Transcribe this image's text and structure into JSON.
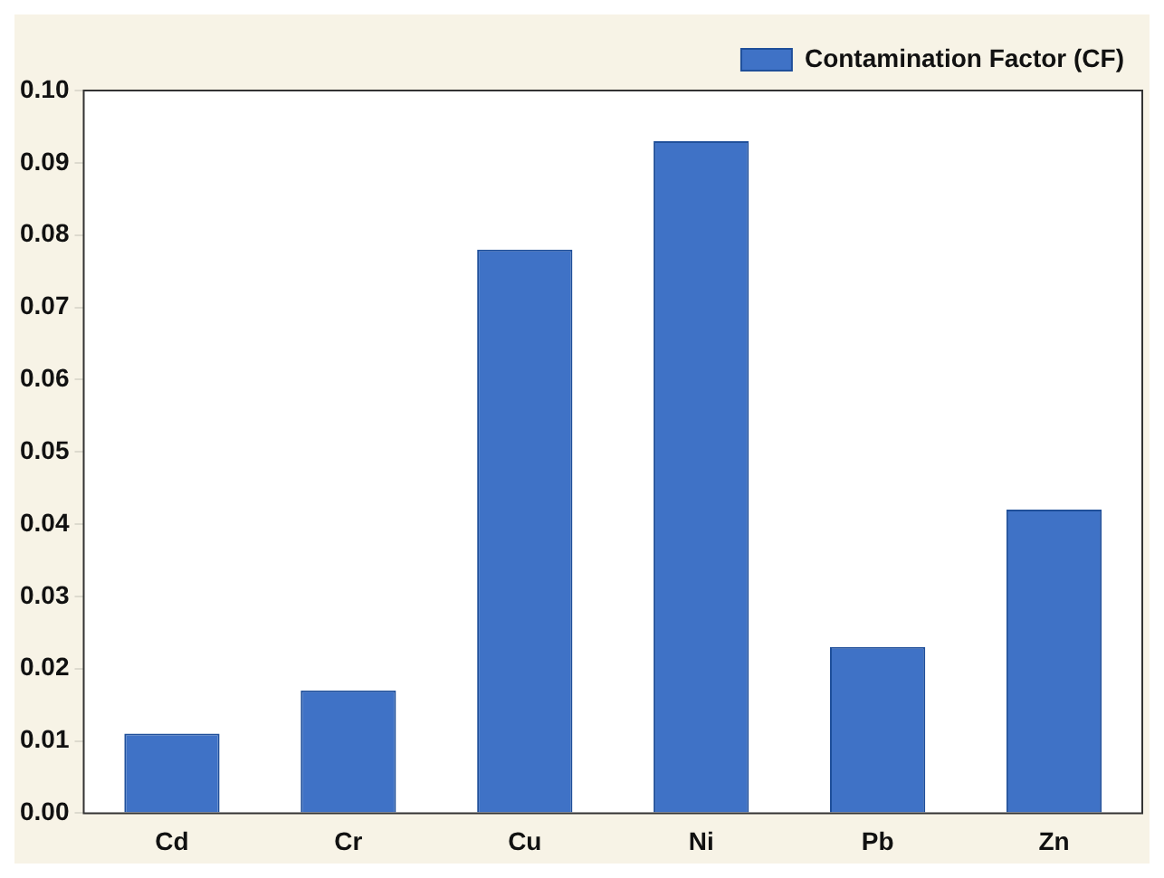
{
  "chart_data": {
    "type": "bar",
    "categories": [
      "Cd",
      "Cr",
      "Cu",
      "Ni",
      "Pb",
      "Zn"
    ],
    "series": [
      {
        "name": "Contamination Factor (CF)",
        "color": "#3f72c6",
        "values": [
          0.011,
          0.017,
          0.078,
          0.093,
          0.023,
          0.042
        ]
      }
    ],
    "ylim": [
      0,
      0.1
    ],
    "yticks": [
      {
        "value": 0,
        "label": "0.00"
      },
      {
        "value": 0.01,
        "label": "0.01"
      },
      {
        "value": 0.02,
        "label": "0.02"
      },
      {
        "value": 0.03,
        "label": "0.03"
      },
      {
        "value": 0.04,
        "label": "0.04"
      },
      {
        "value": 0.05,
        "label": "0.05"
      },
      {
        "value": 0.06,
        "label": "0.06"
      },
      {
        "value": 0.07,
        "label": "0.07"
      },
      {
        "value": 0.08,
        "label": "0.08"
      },
      {
        "value": 0.09,
        "label": "0.09"
      },
      {
        "value": 0.1,
        "label": "0.10"
      }
    ],
    "grid": false,
    "legend": "top right"
  }
}
